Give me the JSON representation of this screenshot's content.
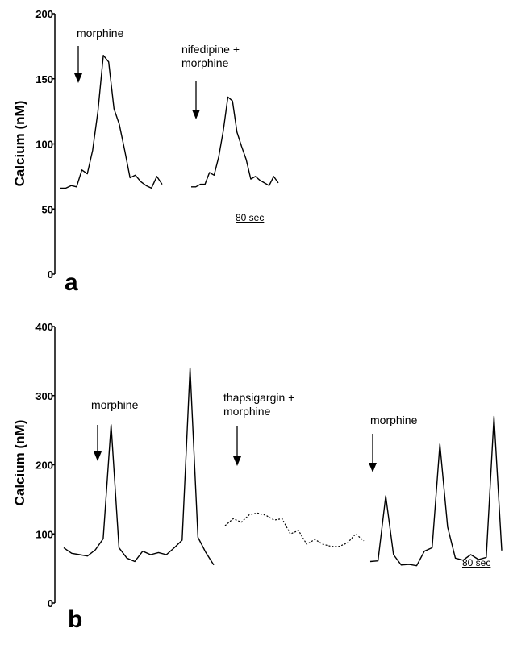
{
  "chart_data": [
    {
      "type": "line",
      "panel_label": "a",
      "ylabel": "Calcium (nM)",
      "ylim": [
        0,
        200
      ],
      "yticks": [
        0,
        50,
        100,
        150,
        200
      ],
      "scale_bar_label": "80 sec",
      "series": [
        {
          "style": "solid",
          "values": [
            66,
            66,
            68,
            67,
            80,
            77,
            95,
            125,
            168,
            163,
            127,
            115,
            95,
            74,
            76,
            71,
            68,
            66,
            75,
            69
          ]
        },
        {
          "style": "solid",
          "values": [
            67,
            67,
            69,
            69,
            78,
            76,
            90,
            110,
            136,
            133,
            109,
            98,
            88,
            73,
            75,
            72,
            70,
            68,
            75,
            70
          ]
        }
      ],
      "annotations": [
        {
          "text": [
            "morphine"
          ],
          "series_index": 0,
          "point_index": 3
        },
        {
          "text": [
            "nifedipine +",
            "morphine"
          ],
          "series_index": 1,
          "point_index": 0
        }
      ]
    },
    {
      "type": "line",
      "panel_label": "b",
      "ylabel": "Calcium (nM)",
      "ylim": [
        0,
        400
      ],
      "yticks": [
        0,
        100,
        200,
        300,
        400
      ],
      "scale_bar_label": "80 sec",
      "series": [
        {
          "style": "solid",
          "values": [
            80,
            72,
            70,
            68,
            77,
            93,
            258,
            80,
            65,
            60,
            75,
            70,
            73,
            70,
            80,
            91,
            340,
            95,
            73,
            55
          ]
        },
        {
          "style": "dotted",
          "values": [
            112,
            122,
            117,
            128,
            130,
            127,
            120,
            122,
            100,
            105,
            85,
            92,
            85,
            82,
            82,
            87,
            100,
            90
          ]
        },
        {
          "style": "solid",
          "values": [
            60,
            61,
            155,
            70,
            55,
            56,
            54,
            75,
            80,
            230,
            110,
            65,
            62,
            70,
            63,
            66,
            270,
            76
          ]
        }
      ],
      "annotations": [
        {
          "text": [
            "morphine"
          ],
          "series_index": 0,
          "point_index": 5
        },
        {
          "text": [
            "thapsigargin +",
            "morphine"
          ],
          "series_index": 1,
          "point_index": 2
        },
        {
          "text": [
            "morphine"
          ],
          "series_index": 2,
          "point_index": 0
        }
      ]
    }
  ]
}
